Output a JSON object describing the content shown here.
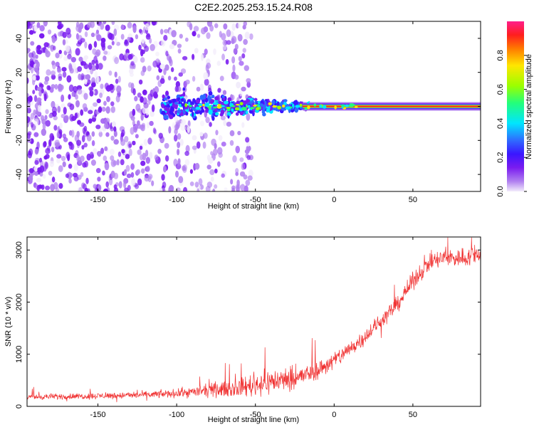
{
  "figure": {
    "title": "C2E2.2025.253.15.24.R08"
  },
  "colors": {
    "snr_line": "#f03030",
    "colormap": [
      "#f2ecfb",
      "#b07ff0",
      "#7a1cf0",
      "#3a16ff",
      "#2f6bff",
      "#00e5ff",
      "#23ff7a",
      "#9aff00",
      "#ffe600",
      "#ff7a00",
      "#ff1e1e",
      "#ff1e8a"
    ]
  },
  "chart_data": [
    {
      "type": "heatmap",
      "name": "spectrogram",
      "title": "C2E2.2025.253.15.24.R08",
      "xlabel": "Height of straight line (km)",
      "ylabel": "Frequency (Hz)",
      "xlim": [
        -195,
        93
      ],
      "ylim": [
        -50,
        50
      ],
      "xticks": [
        -150,
        -100,
        -50,
        0,
        50
      ],
      "yticks": [
        -40,
        -20,
        0,
        20,
        40
      ],
      "xtick_labels": [
        "-150",
        "-100",
        "-50",
        "0",
        "50"
      ],
      "ytick_labels": [
        "-40",
        "-20",
        "0",
        "20",
        "40"
      ],
      "colorbar": {
        "label": "Normalized spectral amplitude",
        "range": [
          0,
          1
        ],
        "ticks": [
          0.0,
          0.2,
          0.4,
          0.6,
          0.8
        ],
        "tick_labels": [
          "0.0",
          "0.2",
          "0.4",
          "0.6",
          "0.8"
        ]
      },
      "features": {
        "signal_line_frequency": 0,
        "signal_onset_height": -110,
        "signal_strong_from_height": -20,
        "noise_fades_by_height": -60
      }
    },
    {
      "type": "line",
      "name": "snr",
      "xlabel": "Height of straight line (km)",
      "ylabel": "SNR (10 * v/v)",
      "xlim": [
        -195,
        93
      ],
      "ylim": [
        0,
        3250
      ],
      "xticks": [
        -150,
        -100,
        -50,
        0,
        50
      ],
      "yticks": [
        0,
        1000,
        2000,
        3000
      ],
      "xtick_labels": [
        "-150",
        "-100",
        "-50",
        "0",
        "50"
      ],
      "ytick_labels": [
        "0",
        "1000",
        "2000",
        "3000"
      ],
      "series": [
        {
          "name": "SNR",
          "trend_x": [
            -195,
            -150,
            -120,
            -100,
            -80,
            -60,
            -50,
            -40,
            -30,
            -20,
            -10,
            0,
            10,
            20,
            30,
            40,
            50,
            60,
            70,
            80,
            93
          ],
          "trend_y": [
            180,
            200,
            220,
            250,
            300,
            360,
            420,
            480,
            520,
            580,
            700,
            880,
            1100,
            1350,
            1650,
            1950,
            2400,
            2750,
            2850,
            2850,
            2900
          ],
          "spread_y": [
            80,
            90,
            100,
            120,
            180,
            250,
            350,
            350,
            330,
            280,
            260,
            260,
            240,
            230,
            230,
            230,
            250,
            250,
            280,
            280,
            280
          ]
        }
      ]
    }
  ]
}
